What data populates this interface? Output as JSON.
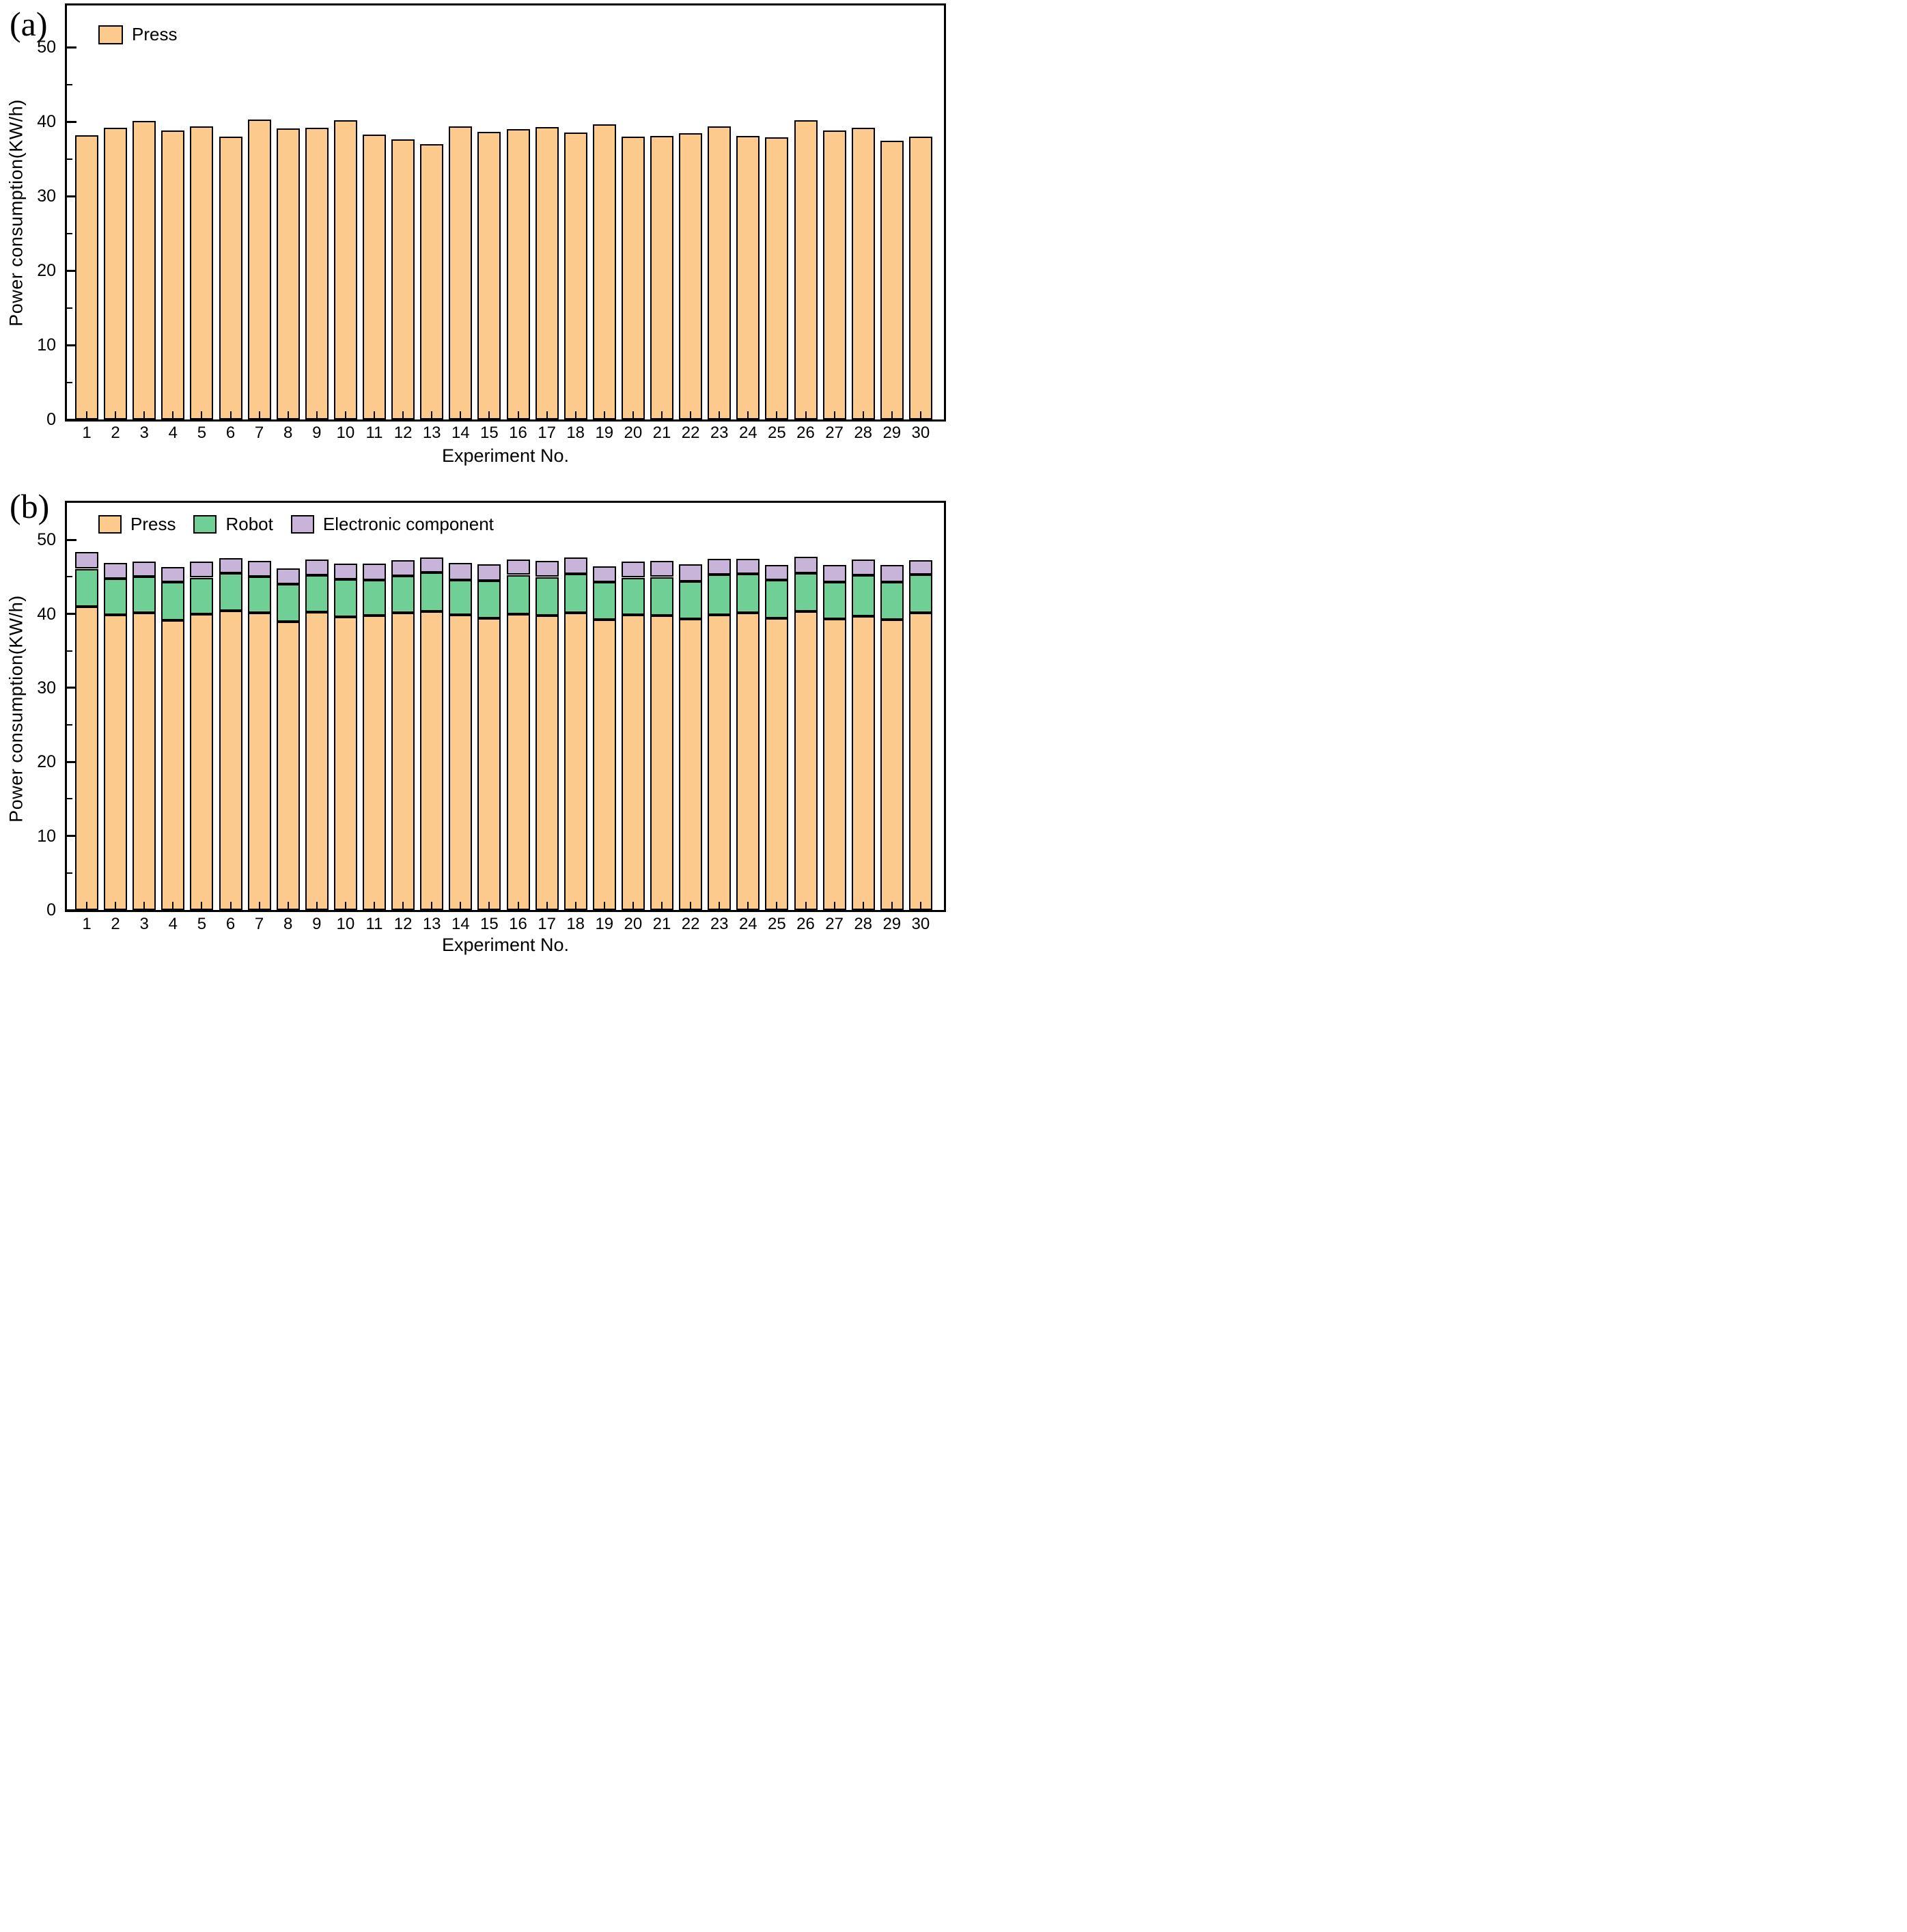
{
  "figure": {
    "background": "#ffffff",
    "panels": [
      "(a)",
      "(b)"
    ]
  },
  "colors": {
    "press": "#FBCA8C",
    "robot": "#70CF94",
    "electronic_component": "#C9B4D9",
    "axis": "#000000",
    "text": "#000000"
  },
  "chart_data": [
    {
      "type": "bar",
      "panel_label": "(a)",
      "xlabel": "Experiment No.",
      "ylabel": "Power consumption(KW/h)",
      "ylim": [
        0,
        55
      ],
      "yticks": [
        0,
        10,
        20,
        30,
        40,
        50
      ],
      "minor_yticks": [
        5,
        15,
        25,
        35,
        45
      ],
      "grid": false,
      "legend_position": "top-left-inside",
      "categories": [
        1,
        2,
        3,
        4,
        5,
        6,
        7,
        8,
        9,
        10,
        11,
        12,
        13,
        14,
        15,
        16,
        17,
        18,
        19,
        20,
        21,
        22,
        23,
        24,
        25,
        26,
        27,
        28,
        29,
        30
      ],
      "series": [
        {
          "name": "Press",
          "color": "#FBCA8C",
          "values": [
            38.2,
            39.2,
            40.1,
            38.8,
            39.4,
            38.0,
            40.3,
            39.1,
            39.2,
            40.2,
            38.3,
            37.6,
            37.0,
            39.4,
            38.6,
            39.0,
            39.3,
            38.5,
            39.6,
            38.0,
            38.1,
            38.4,
            39.4,
            38.1,
            37.9,
            40.2,
            38.8,
            39.2,
            37.4,
            38.0
          ]
        }
      ]
    },
    {
      "type": "stacked-bar",
      "panel_label": "(b)",
      "xlabel": "Experiment No.",
      "ylabel": "Power consumption(KW/h)",
      "ylim": [
        0,
        55
      ],
      "yticks": [
        0,
        10,
        20,
        30,
        40,
        50
      ],
      "minor_yticks": [
        5,
        15,
        25,
        35,
        45
      ],
      "grid": false,
      "legend_position": "top-left-inside",
      "categories": [
        1,
        2,
        3,
        4,
        5,
        6,
        7,
        8,
        9,
        10,
        11,
        12,
        13,
        14,
        15,
        16,
        17,
        18,
        19,
        20,
        21,
        22,
        23,
        24,
        25,
        26,
        27,
        28,
        29,
        30
      ],
      "series": [
        {
          "name": "Press",
          "color": "#FBCA8C",
          "values": [
            41.0,
            39.9,
            40.1,
            39.1,
            40.0,
            40.4,
            40.1,
            38.9,
            40.2,
            39.6,
            39.8,
            40.1,
            40.3,
            39.9,
            39.4,
            40.0,
            39.8,
            40.1,
            39.2,
            39.9,
            39.8,
            39.3,
            39.9,
            40.1,
            39.4,
            40.3,
            39.3,
            39.7,
            39.2,
            40.1
          ]
        },
        {
          "name": "Robot",
          "color": "#70CF94",
          "values": [
            5.1,
            4.9,
            4.9,
            5.2,
            4.9,
            5.1,
            4.9,
            5.1,
            5.0,
            5.1,
            4.8,
            5.0,
            5.3,
            4.7,
            5.1,
            5.3,
            5.2,
            5.3,
            5.1,
            5.0,
            5.2,
            5.1,
            5.4,
            5.3,
            5.2,
            5.2,
            5.0,
            5.5,
            5.1,
            5.2
          ]
        },
        {
          "name": "Electronic component",
          "color": "#C9B4D9",
          "values": [
            2.2,
            2.1,
            2.0,
            2.0,
            2.1,
            2.0,
            2.1,
            2.1,
            2.1,
            2.1,
            2.2,
            2.1,
            2.0,
            2.3,
            2.2,
            2.0,
            2.1,
            2.2,
            2.1,
            2.1,
            2.1,
            2.3,
            2.1,
            2.0,
            2.0,
            2.2,
            2.3,
            2.1,
            2.3,
            1.9
          ]
        }
      ]
    }
  ]
}
